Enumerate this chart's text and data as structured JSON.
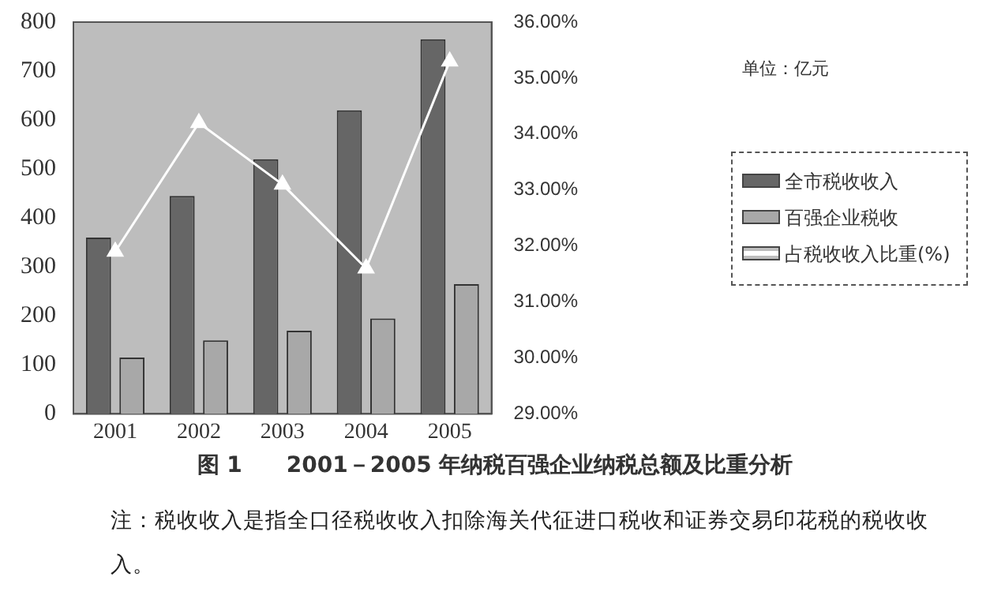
{
  "chart_data": {
    "type": "bar",
    "title": "图 1　　2001－2005 年纳税百强企业纳税总额及比重分析",
    "categories": [
      "2001",
      "2002",
      "2003",
      "2004",
      "2005"
    ],
    "series": [
      {
        "name": "全市税收收入",
        "color": "#666666",
        "values": [
          360,
          445,
          520,
          620,
          765
        ]
      },
      {
        "name": "百强企业税收",
        "color": "#a8a8a8",
        "values": [
          115,
          150,
          170,
          195,
          265
        ]
      },
      {
        "name": "占税收收入比重(%)",
        "type": "line",
        "axis": "y2",
        "color": "#ffffff",
        "marker": "triangle",
        "values": [
          31.9,
          34.2,
          33.1,
          31.6,
          35.3
        ]
      }
    ],
    "ylim": [
      0,
      800
    ],
    "yticks": [
      0,
      100,
      200,
      300,
      400,
      500,
      600,
      700,
      800
    ],
    "y2lim": [
      29,
      36
    ],
    "y2ticks": [
      {
        "value": 29,
        "label": "29.00%"
      },
      {
        "value": 30,
        "label": "30.00%"
      },
      {
        "value": 31,
        "label": "31.00%"
      },
      {
        "value": 32,
        "label": "32.00%"
      },
      {
        "value": 33,
        "label": "33.00%"
      },
      {
        "value": 34,
        "label": "34.00%"
      },
      {
        "value": 35,
        "label": "35.00%"
      },
      {
        "value": 36,
        "label": "36.00%"
      }
    ],
    "grid": false,
    "legend": "right",
    "annotations": [
      "单位：亿元",
      "注：税收收入是指全口径税收收入扣除海关代征进口税收和证券交易印花税的税收收入。"
    ]
  }
}
